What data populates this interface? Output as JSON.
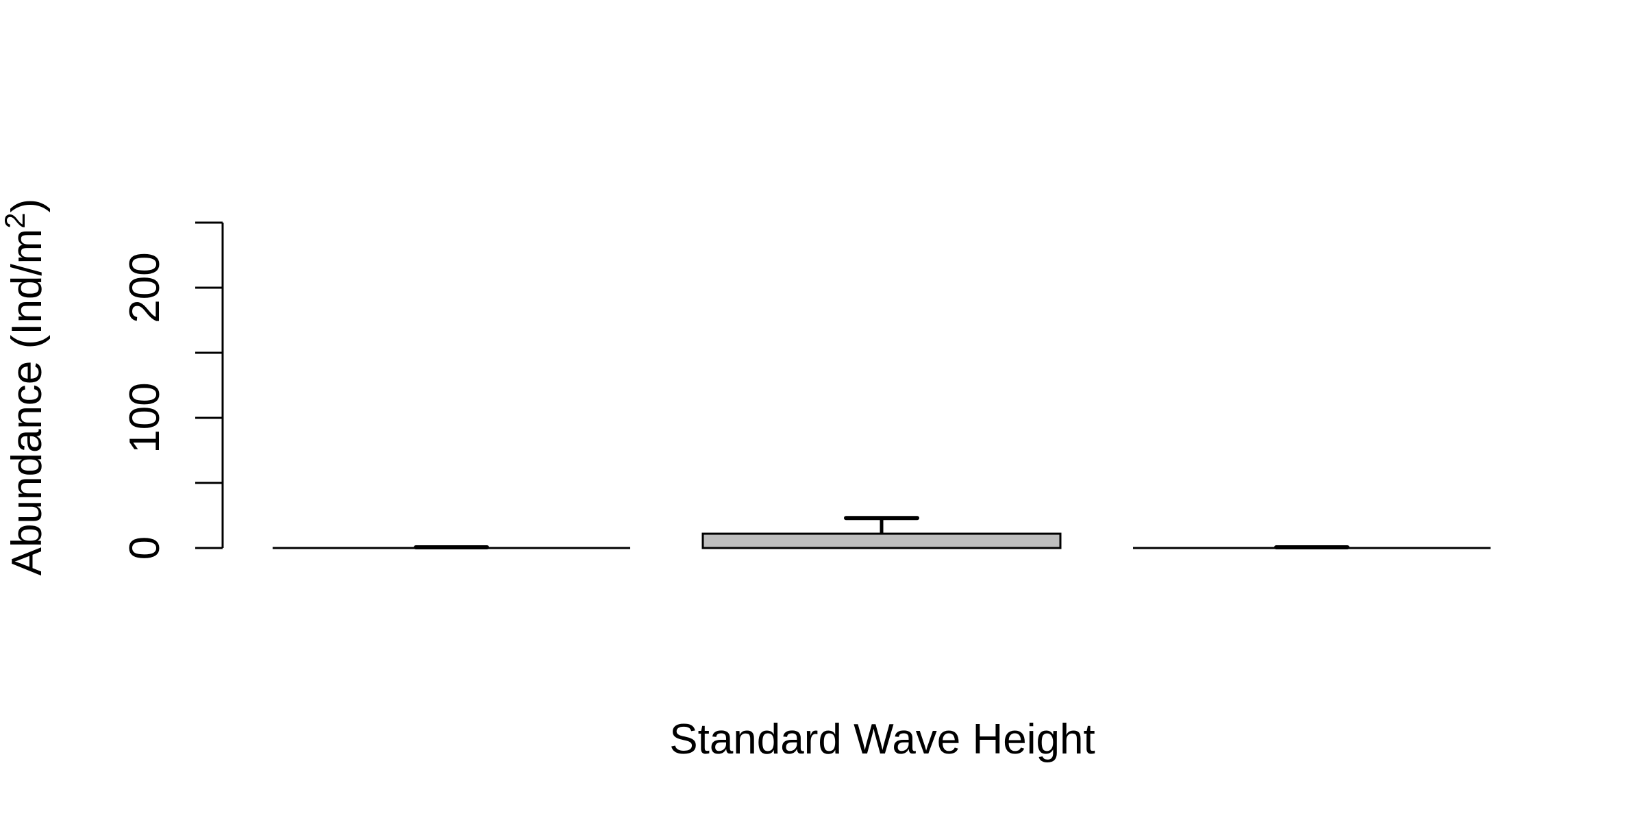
{
  "chart_data": {
    "type": "bar",
    "title": "",
    "xlabel": "Standard Wave Height",
    "ylabel": "Abundance (Ind/m",
    "ylabel_superscript": "2",
    "ylabel_suffix": ")",
    "categories": [
      "",
      "",
      ""
    ],
    "values": [
      0,
      11,
      0
    ],
    "error_upper": [
      0.5,
      23,
      0.5
    ],
    "ylim": [
      0,
      250
    ],
    "yticks": [
      0,
      50,
      100,
      150,
      200,
      250
    ],
    "ytick_labels": [
      "0",
      "",
      "100",
      "",
      "200",
      ""
    ],
    "grid": false,
    "legend": "none",
    "colors": {
      "bar_fill": "#bebebe",
      "bar_stroke": "#000000",
      "axis": "#000000"
    }
  }
}
